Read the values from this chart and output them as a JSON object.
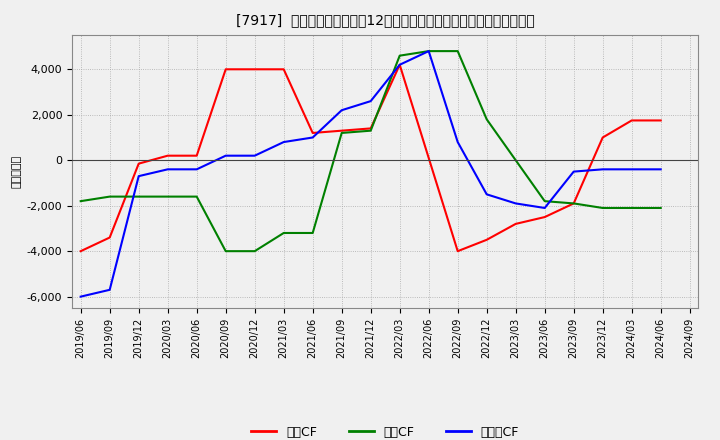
{
  "title": "[7917]  キャッシュフローの12か月移動合計の対前年同期増減額の推移",
  "ylabel": "（百万円）",
  "background_color": "#f0f0f0",
  "plot_bg_color": "#f0f0f0",
  "grid_color": "#aaaaaa",
  "ylim": [
    -6500,
    5500
  ],
  "yticks": [
    -6000,
    -4000,
    -2000,
    0,
    2000,
    4000
  ],
  "x_labels": [
    "2019/06",
    "2019/09",
    "2019/12",
    "2020/03",
    "2020/06",
    "2020/09",
    "2020/12",
    "2021/03",
    "2021/06",
    "2021/09",
    "2021/12",
    "2022/03",
    "2022/06",
    "2022/09",
    "2022/12",
    "2023/03",
    "2023/06",
    "2023/09",
    "2023/12",
    "2024/03",
    "2024/06",
    "2024/09"
  ],
  "series": {
    "営業CF": {
      "color": "#ff0000",
      "data_x": [
        "2019/06",
        "2019/09",
        "2019/12",
        "2020/03",
        "2020/06",
        "2020/09",
        "2020/12",
        "2021/03",
        "2021/06",
        "2021/09",
        "2021/12",
        "2022/03",
        "2022/06",
        "2022/09",
        "2022/12",
        "2023/03",
        "2023/06",
        "2023/09",
        "2023/12",
        "2024/03",
        "2024/06"
      ],
      "data_y": [
        -4000,
        -3400,
        -150,
        200,
        200,
        4000,
        4000,
        4000,
        1200,
        1300,
        1400,
        4200,
        100,
        -4000,
        -3500,
        -2800,
        -2500,
        -1900,
        1000,
        1750,
        1750
      ]
    },
    "投資CF": {
      "color": "#008000",
      "data_x": [
        "2019/06",
        "2019/09",
        "2019/12",
        "2020/03",
        "2020/06",
        "2020/09",
        "2020/12",
        "2021/03",
        "2021/06",
        "2021/09",
        "2021/12",
        "2022/03",
        "2022/06",
        "2022/09",
        "2022/12",
        "2023/03",
        "2023/06",
        "2023/09",
        "2023/12",
        "2024/03",
        "2024/06"
      ],
      "data_y": [
        -1800,
        -1600,
        -1600,
        -1600,
        -1600,
        -4000,
        -4000,
        -3200,
        -3200,
        1200,
        1300,
        4600,
        4800,
        4800,
        1800,
        0,
        -1800,
        -1900,
        -2100,
        -2100,
        -2100
      ]
    },
    "フリーCF": {
      "color": "#0000ff",
      "data_x": [
        "2019/06",
        "2019/09",
        "2019/12",
        "2020/03",
        "2020/06",
        "2020/09",
        "2020/12",
        "2021/03",
        "2021/06",
        "2021/09",
        "2021/12",
        "2022/03",
        "2022/06",
        "2022/09",
        "2022/12",
        "2023/03",
        "2023/06",
        "2023/09",
        "2023/12",
        "2024/03",
        "2024/06"
      ],
      "data_y": [
        -6000,
        -5700,
        -700,
        -400,
        -400,
        200,
        200,
        800,
        1000,
        2200,
        2600,
        4200,
        4800,
        800,
        -1500,
        -1900,
        -2100,
        -500,
        -400,
        -400,
        -400
      ]
    }
  },
  "legend_labels": [
    "営業CF",
    "投資CF",
    "フリーCF"
  ],
  "legend_colors": [
    "#ff0000",
    "#008000",
    "#0000ff"
  ]
}
